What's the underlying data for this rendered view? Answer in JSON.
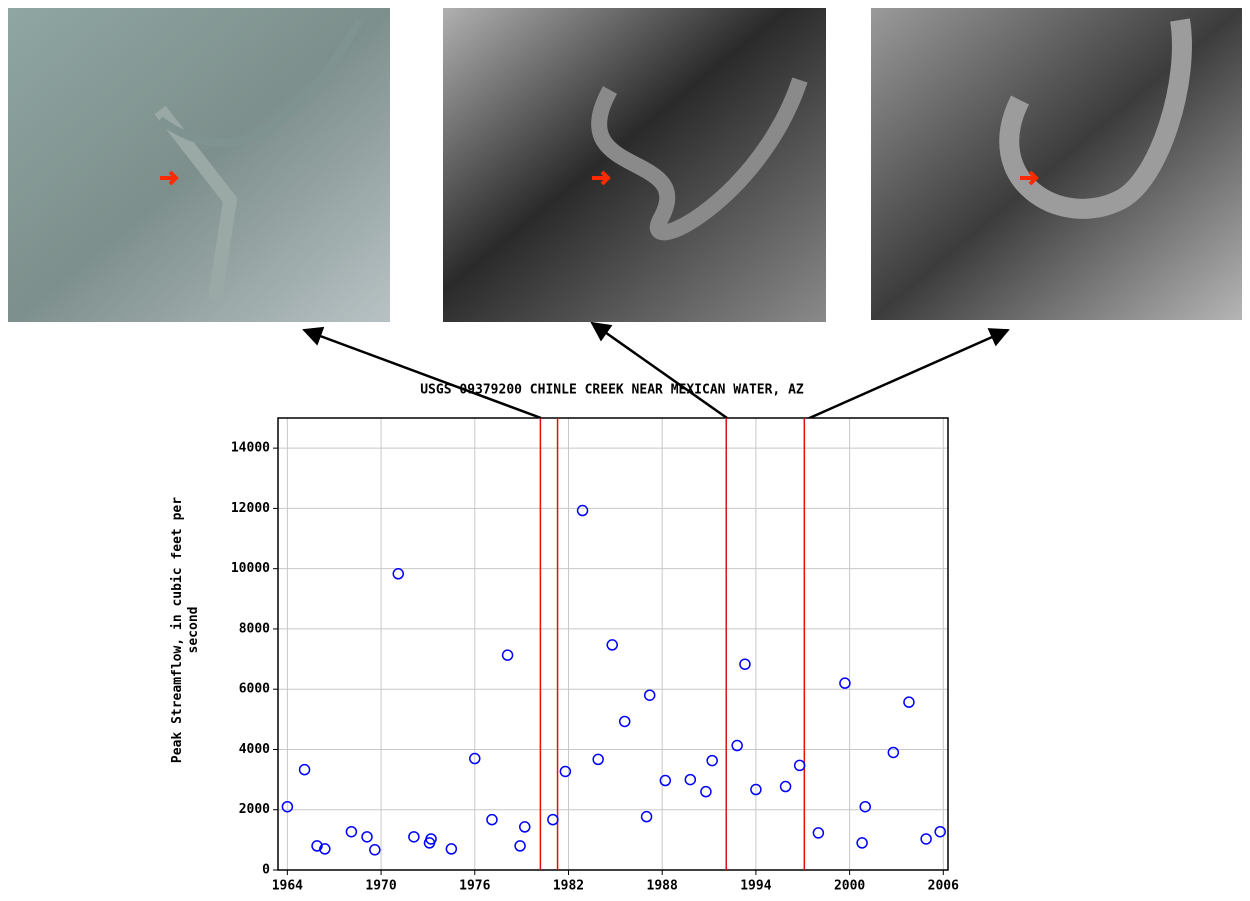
{
  "chart_data": {
    "type": "scatter",
    "title": "USGS 09379200 CHINLE CREEK NEAR MEXICAN WATER, AZ",
    "y_label": "Peak Streamflow, in cubic feet per second",
    "x": [
      1964.0,
      1965.1,
      1965.9,
      1966.4,
      1968.1,
      1969.1,
      1969.6,
      1971.1,
      1972.1,
      1973.1,
      1973.2,
      1974.5,
      1976.0,
      1977.1,
      1978.1,
      1978.9,
      1979.2,
      1981.0,
      1981.8,
      1982.9,
      1983.9,
      1984.8,
      1985.6,
      1987.0,
      1987.2,
      1988.2,
      1989.8,
      1990.8,
      1991.2,
      1992.8,
      1993.3,
      1994.0,
      1995.9,
      1996.8,
      1998.0,
      1999.7,
      2000.8,
      2001.0,
      2002.8,
      2003.8,
      2004.9,
      2005.8
    ],
    "series": [
      {
        "color": "#0000ff",
        "values": [
          2100,
          3330,
          800,
          700,
          1270,
          1100,
          670,
          9830,
          1100,
          900,
          1030,
          700,
          3700,
          1670,
          7130,
          800,
          1430,
          1670,
          3270,
          11930,
          3670,
          7470,
          4930,
          1770,
          5800,
          2970,
          3000,
          2600,
          3630,
          4130,
          6830,
          2670,
          2770,
          3470,
          1230,
          6200,
          900,
          2100,
          3900,
          5570,
          1030,
          1270
        ]
      }
    ],
    "vlines": [
      1980.2,
      1981.3,
      1992.1,
      1997.1
    ],
    "vline_color": "#e01010",
    "xlim": [
      1963.4,
      2006.3
    ],
    "xticks": [
      1964,
      1970,
      1976,
      1982,
      1988,
      1994,
      2000,
      2006
    ],
    "ylim": [
      0,
      15000
    ],
    "yticks": [
      0,
      2000,
      4000,
      6000,
      8000,
      10000,
      12000,
      14000
    ],
    "grid": true
  }
}
